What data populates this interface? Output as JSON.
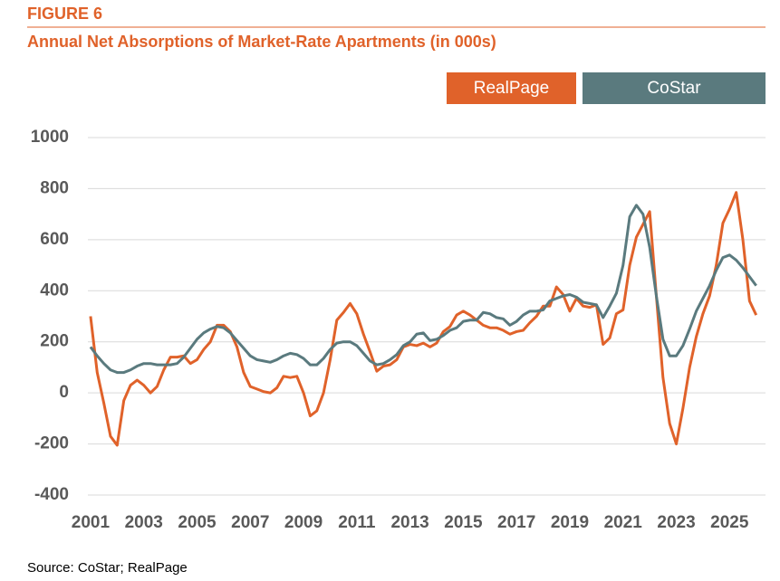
{
  "chart_data": {
    "type": "line",
    "figure_label": "FIGURE 6",
    "title": "Annual Net Absorptions of Market-Rate Apartments (in 000s)",
    "source": "Source: CoStar; RealPage",
    "x": [
      2001,
      2001.25,
      2001.5,
      2001.75,
      2002,
      2002.25,
      2002.5,
      2002.75,
      2003,
      2003.25,
      2003.5,
      2003.75,
      2004,
      2004.25,
      2004.5,
      2004.75,
      2005,
      2005.25,
      2005.5,
      2005.75,
      2006,
      2006.25,
      2006.5,
      2006.75,
      2007,
      2007.25,
      2007.5,
      2007.75,
      2008,
      2008.25,
      2008.5,
      2008.75,
      2009,
      2009.25,
      2009.5,
      2009.75,
      2010,
      2010.25,
      2010.5,
      2010.75,
      2011,
      2011.25,
      2011.5,
      2011.75,
      2012,
      2012.25,
      2012.5,
      2012.75,
      2013,
      2013.25,
      2013.5,
      2013.75,
      2014,
      2014.25,
      2014.5,
      2014.75,
      2015,
      2015.25,
      2015.5,
      2015.75,
      2016,
      2016.25,
      2016.5,
      2016.75,
      2017,
      2017.25,
      2017.5,
      2017.75,
      2018,
      2018.25,
      2018.5,
      2018.75,
      2019,
      2019.25,
      2019.5,
      2019.75,
      2020,
      2020.25,
      2020.5,
      2020.75,
      2021,
      2021.25,
      2021.5,
      2021.75,
      2022,
      2022.25,
      2022.5,
      2022.75,
      2023,
      2023.25,
      2023.5,
      2023.75,
      2024,
      2024.25,
      2024.5,
      2024.75,
      2025,
      2025.25,
      2025.5,
      2025.75,
      2026
    ],
    "series": [
      {
        "name": "RealPage",
        "color": "#e0622a",
        "values": [
          300,
          80,
          -40,
          -170,
          -205,
          -30,
          30,
          50,
          30,
          0,
          25,
          90,
          140,
          140,
          145,
          115,
          130,
          170,
          200,
          265,
          265,
          240,
          180,
          80,
          25,
          15,
          5,
          0,
          20,
          65,
          60,
          65,
          0,
          -90,
          -70,
          0,
          130,
          285,
          315,
          350,
          310,
          230,
          160,
          85,
          105,
          110,
          130,
          180,
          190,
          185,
          195,
          180,
          195,
          240,
          260,
          305,
          320,
          305,
          285,
          265,
          255,
          255,
          245,
          230,
          240,
          245,
          275,
          300,
          340,
          340,
          415,
          385,
          320,
          370,
          340,
          335,
          345,
          190,
          215,
          310,
          325,
          500,
          610,
          660,
          710,
          380,
          60,
          -120,
          -200,
          -60,
          100,
          220,
          310,
          380,
          500,
          665,
          720,
          785,
          600,
          360,
          305
        ]
      },
      {
        "name": "CoStar",
        "color": "#5a7a7e",
        "values": [
          180,
          145,
          115,
          90,
          80,
          80,
          90,
          105,
          115,
          115,
          110,
          110,
          110,
          115,
          140,
          175,
          210,
          235,
          250,
          260,
          255,
          235,
          205,
          175,
          145,
          130,
          125,
          120,
          130,
          145,
          155,
          150,
          135,
          110,
          110,
          135,
          170,
          195,
          200,
          200,
          185,
          155,
          125,
          110,
          115,
          130,
          150,
          185,
          200,
          230,
          235,
          205,
          210,
          225,
          245,
          255,
          280,
          285,
          285,
          315,
          310,
          295,
          290,
          265,
          280,
          305,
          320,
          320,
          325,
          360,
          370,
          380,
          385,
          375,
          355,
          350,
          345,
          295,
          340,
          390,
          500,
          690,
          735,
          700,
          570,
          380,
          210,
          145,
          145,
          185,
          250,
          320,
          370,
          420,
          480,
          530,
          540,
          520,
          490,
          455,
          420
        ]
      }
    ],
    "xlim": [
      2000.9,
      2026.35
    ],
    "xticks": [
      2001,
      2003,
      2005,
      2007,
      2009,
      2011,
      2013,
      2015,
      2017,
      2019,
      2021,
      2023,
      2025
    ],
    "ylim": [
      -400,
      1000
    ],
    "yticks": [
      -400,
      -200,
      0,
      200,
      400,
      600,
      800,
      1000
    ],
    "grid": true
  }
}
